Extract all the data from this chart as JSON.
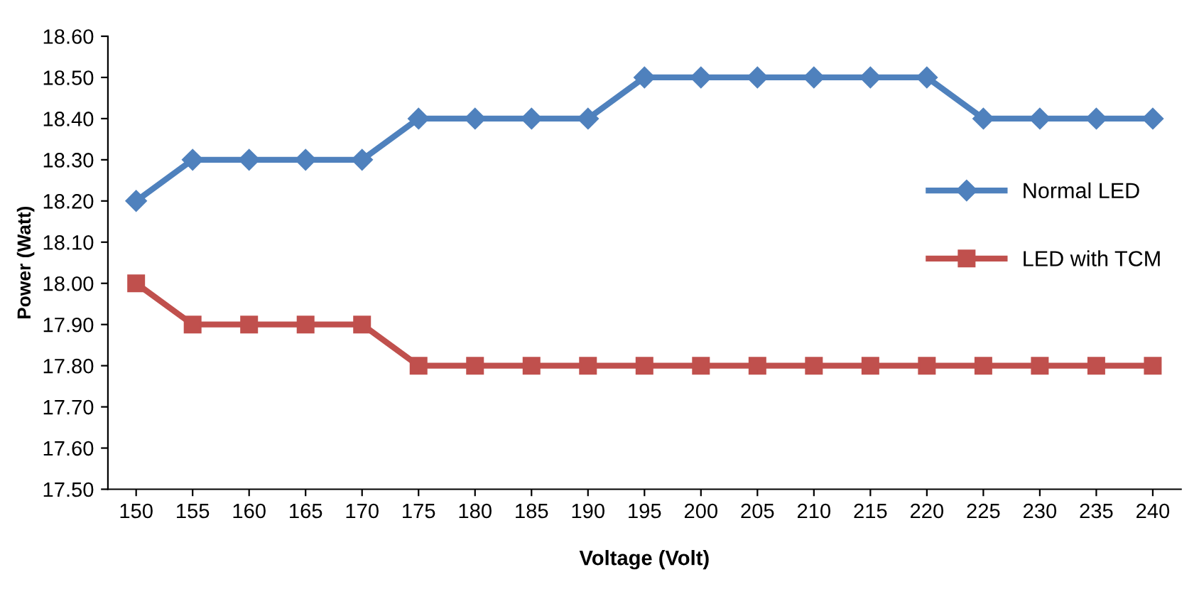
{
  "chart_data": {
    "type": "line",
    "xlabel": "Voltage (Volt)",
    "ylabel": "Power (Watt)",
    "categories": [
      "150",
      "155",
      "160",
      "165",
      "170",
      "175",
      "180",
      "185",
      "190",
      "195",
      "200",
      "205",
      "210",
      "215",
      "220",
      "225",
      "230",
      "235",
      "240"
    ],
    "series": [
      {
        "name": "Normal LED",
        "color": "#4f81bd",
        "marker": "diamond",
        "values": [
          18.2,
          18.3,
          18.3,
          18.3,
          18.3,
          18.4,
          18.4,
          18.4,
          18.4,
          18.5,
          18.5,
          18.5,
          18.5,
          18.5,
          18.5,
          18.4,
          18.4,
          18.4,
          18.4
        ]
      },
      {
        "name": "LED with TCM",
        "color": "#c0504d",
        "marker": "square",
        "values": [
          18.0,
          17.9,
          17.9,
          17.9,
          17.9,
          17.8,
          17.8,
          17.8,
          17.8,
          17.8,
          17.8,
          17.8,
          17.8,
          17.8,
          17.8,
          17.8,
          17.8,
          17.8,
          17.8
        ]
      }
    ],
    "ylim": [
      17.5,
      18.6
    ],
    "yticks": [
      {
        "value": 17.5,
        "label": "17.50"
      },
      {
        "value": 17.6,
        "label": "17.60"
      },
      {
        "value": 17.7,
        "label": "17.70"
      },
      {
        "value": 17.8,
        "label": "17.80"
      },
      {
        "value": 17.9,
        "label": "17.90"
      },
      {
        "value": 18.0,
        "label": "18.00"
      },
      {
        "value": 18.1,
        "label": "18.10"
      },
      {
        "value": 18.2,
        "label": "18.20"
      },
      {
        "value": 18.3,
        "label": "18.30"
      },
      {
        "value": 18.4,
        "label": "18.40"
      },
      {
        "value": 18.5,
        "label": "18.50"
      },
      {
        "value": 18.6,
        "label": "18.60"
      }
    ],
    "grid": false,
    "legend": "right",
    "line_style": "solid"
  }
}
